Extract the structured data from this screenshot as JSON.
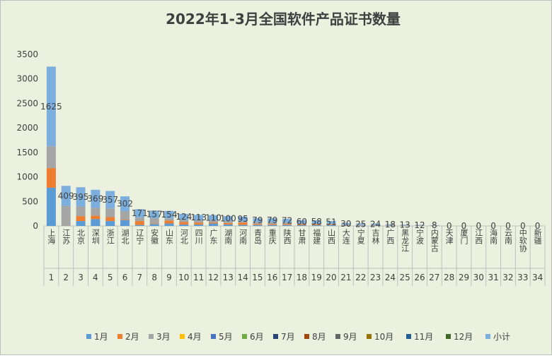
{
  "chart_data": {
    "type": "stacked_bar",
    "title": "2022年1-3月全国软件产品证书数量",
    "categories": [
      "上海",
      "江苏",
      "北京",
      "深圳",
      "浙江",
      "湖北",
      "辽宁",
      "安徽",
      "山东",
      "河北",
      "四川",
      "广东",
      "湖南",
      "河南",
      "青岛",
      "重庆",
      "陕西",
      "甘肃",
      "福建",
      "山西",
      "大连",
      "宁夏",
      "吉林",
      "广西",
      "黑龙江",
      "宁波",
      "内蒙古",
      "天津",
      "厦门",
      "江西",
      "海南",
      "云南",
      "中软协",
      "新疆"
    ],
    "ranks": [
      1,
      2,
      3,
      4,
      5,
      6,
      7,
      8,
      9,
      10,
      11,
      12,
      13,
      14,
      15,
      16,
      17,
      18,
      19,
      20,
      21,
      22,
      23,
      24,
      25,
      26,
      27,
      28,
      29,
      30,
      31,
      32,
      33,
      34
    ],
    "series": [
      {
        "name": "1月",
        "color": "#5b9bd5",
        "values": [
          780,
          5,
          100,
          140,
          100,
          120,
          20,
          40,
          50,
          30,
          30,
          50,
          30,
          20,
          20,
          20,
          20,
          15,
          15,
          15,
          10,
          10,
          8,
          6,
          5,
          4,
          3,
          0,
          0,
          0,
          0,
          0,
          0,
          0
        ]
      },
      {
        "name": "2月",
        "color": "#ed7d31",
        "values": [
          400,
          5,
          100,
          70,
          80,
          10,
          80,
          10,
          60,
          50,
          40,
          20,
          30,
          50,
          20,
          20,
          20,
          15,
          15,
          10,
          5,
          5,
          8,
          6,
          4,
          4,
          3,
          0,
          0,
          0,
          0,
          0,
          0,
          0
        ]
      },
      {
        "name": "3月",
        "color": "#a5a5a5",
        "values": [
          445,
          399,
          195,
          159,
          177,
          172,
          71,
          107,
          44,
          44,
          43,
          40,
          40,
          25,
          39,
          39,
          32,
          30,
          28,
          26,
          15,
          10,
          8,
          6,
          4,
          4,
          2,
          0,
          0,
          0,
          0,
          0,
          0,
          0
        ]
      },
      {
        "name": "4月",
        "color": "#ffc000",
        "values": [
          0,
          0,
          0,
          0,
          0,
          0,
          0,
          0,
          0,
          0,
          0,
          0,
          0,
          0,
          0,
          0,
          0,
          0,
          0,
          0,
          0,
          0,
          0,
          0,
          0,
          0,
          0,
          0,
          0,
          0,
          0,
          0,
          0,
          0
        ]
      },
      {
        "name": "5月",
        "color": "#4472c4",
        "values": [
          0,
          0,
          0,
          0,
          0,
          0,
          0,
          0,
          0,
          0,
          0,
          0,
          0,
          0,
          0,
          0,
          0,
          0,
          0,
          0,
          0,
          0,
          0,
          0,
          0,
          0,
          0,
          0,
          0,
          0,
          0,
          0,
          0,
          0
        ]
      },
      {
        "name": "6月",
        "color": "#70ad47",
        "values": [
          0,
          0,
          0,
          0,
          0,
          0,
          0,
          0,
          0,
          0,
          0,
          0,
          0,
          0,
          0,
          0,
          0,
          0,
          0,
          0,
          0,
          0,
          0,
          0,
          0,
          0,
          0,
          0,
          0,
          0,
          0,
          0,
          0,
          0
        ]
      },
      {
        "name": "7月",
        "color": "#264478",
        "values": [
          0,
          0,
          0,
          0,
          0,
          0,
          0,
          0,
          0,
          0,
          0,
          0,
          0,
          0,
          0,
          0,
          0,
          0,
          0,
          0,
          0,
          0,
          0,
          0,
          0,
          0,
          0,
          0,
          0,
          0,
          0,
          0,
          0,
          0
        ]
      },
      {
        "name": "8月",
        "color": "#9e480e",
        "values": [
          0,
          0,
          0,
          0,
          0,
          0,
          0,
          0,
          0,
          0,
          0,
          0,
          0,
          0,
          0,
          0,
          0,
          0,
          0,
          0,
          0,
          0,
          0,
          0,
          0,
          0,
          0,
          0,
          0,
          0,
          0,
          0,
          0,
          0
        ]
      },
      {
        "name": "9月",
        "color": "#636363",
        "values": [
          0,
          0,
          0,
          0,
          0,
          0,
          0,
          0,
          0,
          0,
          0,
          0,
          0,
          0,
          0,
          0,
          0,
          0,
          0,
          0,
          0,
          0,
          0,
          0,
          0,
          0,
          0,
          0,
          0,
          0,
          0,
          0,
          0,
          0
        ]
      },
      {
        "name": "10月",
        "color": "#997300",
        "values": [
          0,
          0,
          0,
          0,
          0,
          0,
          0,
          0,
          0,
          0,
          0,
          0,
          0,
          0,
          0,
          0,
          0,
          0,
          0,
          0,
          0,
          0,
          0,
          0,
          0,
          0,
          0,
          0,
          0,
          0,
          0,
          0,
          0,
          0
        ]
      },
      {
        "name": "11月",
        "color": "#255e91",
        "values": [
          0,
          0,
          0,
          0,
          0,
          0,
          0,
          0,
          0,
          0,
          0,
          0,
          0,
          0,
          0,
          0,
          0,
          0,
          0,
          0,
          0,
          0,
          0,
          0,
          0,
          0,
          0,
          0,
          0,
          0,
          0,
          0,
          0,
          0
        ]
      },
      {
        "name": "12月",
        "color": "#43682b",
        "values": [
          0,
          0,
          0,
          0,
          0,
          0,
          0,
          0,
          0,
          0,
          0,
          0,
          0,
          0,
          0,
          0,
          0,
          0,
          0,
          0,
          0,
          0,
          0,
          0,
          0,
          0,
          0,
          0,
          0,
          0,
          0,
          0,
          0,
          0
        ]
      },
      {
        "name": "小计",
        "color": "#7cafdd",
        "data_labels": true,
        "values": [
          1625,
          409,
          395,
          369,
          357,
          302,
          171,
          157,
          154,
          124,
          113,
          110,
          100,
          95,
          79,
          79,
          72,
          60,
          58,
          51,
          30,
          25,
          24,
          18,
          13,
          12,
          8,
          0,
          0,
          0,
          0,
          0,
          0,
          0
        ]
      }
    ],
    "ylim": [
      0,
      3500
    ],
    "yticks": [
      0,
      500,
      1000,
      1500,
      2000,
      2500,
      3000,
      3500
    ],
    "grid": false,
    "legend": "bottom"
  }
}
